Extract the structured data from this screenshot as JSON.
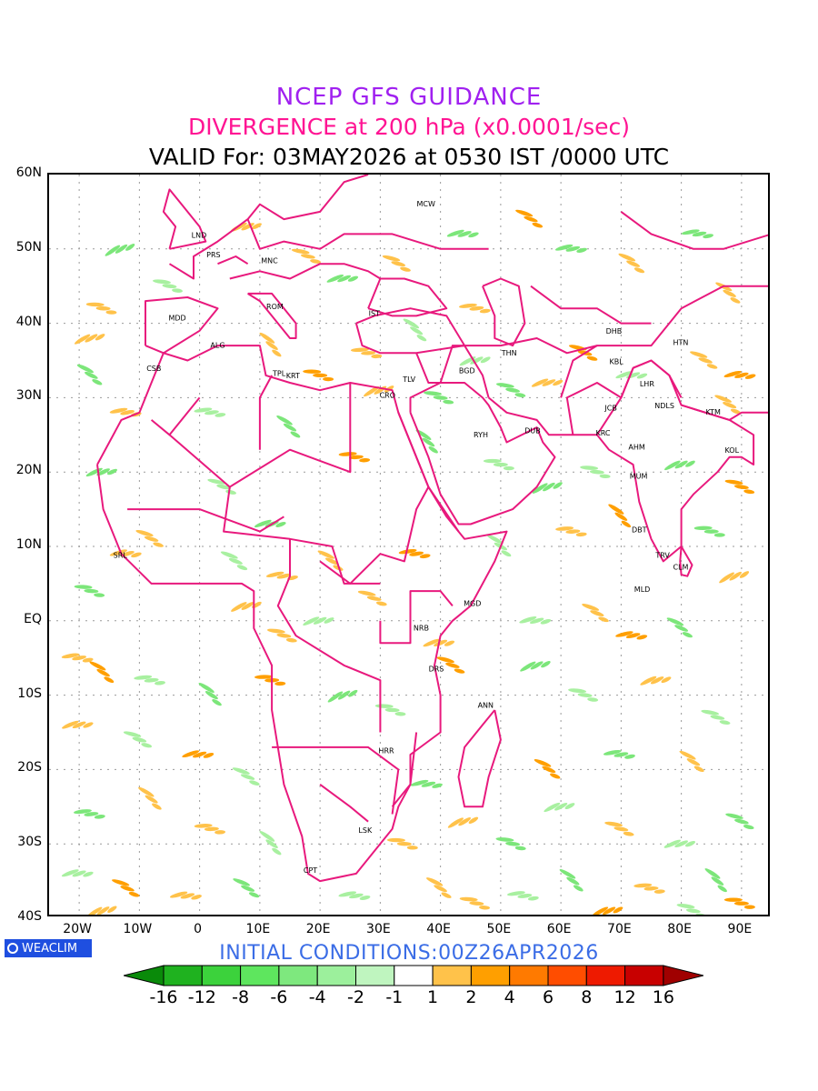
{
  "title_lines": {
    "model": "NCEP GFS GUIDANCE",
    "field": "DIVERGENCE at 200 hPa (x0.0001/sec)",
    "valid": "VALID For: 03MAY2026 at 0530 IST /0000 UTC"
  },
  "initial_conditions": "INITIAL CONDITIONS:00Z26APR2026",
  "logo_text": "WEACLIM",
  "lat_labels": [
    "60N",
    "50N",
    "40N",
    "30N",
    "20N",
    "10N",
    "EQ",
    "10S",
    "20S",
    "30S",
    "40S"
  ],
  "lon_labels": [
    "20W",
    "10W",
    "0",
    "10E",
    "20E",
    "30E",
    "40E",
    "50E",
    "60E",
    "70E",
    "80E",
    "90E"
  ],
  "colors": {
    "boundary": "#e8197d",
    "neg_light": "#a8f0a0",
    "neg_mid": "#7ce67a",
    "pos_light": "#ffc24a",
    "pos_mid": "#ff9f00",
    "pos_dark": "#ff6a00"
  },
  "colorbar": {
    "labels": [
      "-16",
      "-12",
      "-8",
      "-6",
      "-4",
      "-2",
      "-1",
      "1",
      "2",
      "4",
      "6",
      "8",
      "12",
      "16"
    ],
    "colors": [
      "#0a8a0a",
      "#1fb21f",
      "#3cd23c",
      "#5ee65e",
      "#7ee87e",
      "#9cf09c",
      "#bff5bf",
      "#ffffff",
      "#ffc24a",
      "#ff9f00",
      "#ff7a00",
      "#ff4d00",
      "#ee1a00",
      "#c80000",
      "#a00000"
    ]
  },
  "stations": [
    {
      "code": "MCW",
      "lon": 37.6,
      "lat": 55.7
    },
    {
      "code": "LND",
      "lon": -0.1,
      "lat": 51.5
    },
    {
      "code": "PRS",
      "lon": 2.3,
      "lat": 48.9
    },
    {
      "code": "MNC",
      "lon": 11.6,
      "lat": 48.1
    },
    {
      "code": "ROM",
      "lon": 12.5,
      "lat": 41.9
    },
    {
      "code": "IST",
      "lon": 29.0,
      "lat": 41.0
    },
    {
      "code": "MDD",
      "lon": -3.7,
      "lat": 40.4
    },
    {
      "code": "ALG",
      "lon": 3.0,
      "lat": 36.7
    },
    {
      "code": "CSB",
      "lon": -7.6,
      "lat": 33.6
    },
    {
      "code": "TPL",
      "lon": 13.2,
      "lat": 32.9
    },
    {
      "code": "KRT",
      "lon": 15.5,
      "lat": 32.6
    },
    {
      "code": "TLV",
      "lon": 34.8,
      "lat": 32.1
    },
    {
      "code": "CRO",
      "lon": 31.2,
      "lat": 30.0
    },
    {
      "code": "BGD",
      "lon": 44.4,
      "lat": 33.3
    },
    {
      "code": "THN",
      "lon": 51.4,
      "lat": 35.7
    },
    {
      "code": "DHB",
      "lon": 68.8,
      "lat": 38.6
    },
    {
      "code": "HTN",
      "lon": 79.9,
      "lat": 37.1
    },
    {
      "code": "KBL",
      "lon": 69.2,
      "lat": 34.5
    },
    {
      "code": "LHR",
      "lon": 74.3,
      "lat": 31.5
    },
    {
      "code": "JCB",
      "lon": 68.3,
      "lat": 28.3
    },
    {
      "code": "NDLS",
      "lon": 77.2,
      "lat": 28.6
    },
    {
      "code": "KTM",
      "lon": 85.3,
      "lat": 27.7
    },
    {
      "code": "RYH",
      "lon": 46.7,
      "lat": 24.7
    },
    {
      "code": "DUB",
      "lon": 55.3,
      "lat": 25.2
    },
    {
      "code": "KRC",
      "lon": 67.0,
      "lat": 24.9
    },
    {
      "code": "AHM",
      "lon": 72.6,
      "lat": 23.0
    },
    {
      "code": "KOL",
      "lon": 88.4,
      "lat": 22.6
    },
    {
      "code": "MUM",
      "lon": 72.9,
      "lat": 19.1
    },
    {
      "code": "DBT",
      "lon": 73.0,
      "lat": 11.9
    },
    {
      "code": "TRV",
      "lon": 76.9,
      "lat": 8.5
    },
    {
      "code": "CLM",
      "lon": 79.9,
      "lat": 6.9
    },
    {
      "code": "MLD",
      "lon": 73.5,
      "lat": 3.9
    },
    {
      "code": "SRL",
      "lon": -13.2,
      "lat": 8.5
    },
    {
      "code": "MGD",
      "lon": 45.3,
      "lat": 2.0
    },
    {
      "code": "NRB",
      "lon": 36.8,
      "lat": -1.3
    },
    {
      "code": "DRS",
      "lon": 39.3,
      "lat": -6.8
    },
    {
      "code": "ANN",
      "lon": 47.5,
      "lat": -11.7
    },
    {
      "code": "HRR",
      "lon": 31.0,
      "lat": -17.8
    },
    {
      "code": "LSK",
      "lon": 27.5,
      "lat": -28.5
    },
    {
      "code": "CPT",
      "lon": 18.4,
      "lat": -33.9
    }
  ],
  "divergence_blobs": [
    {
      "lon": -13,
      "lat": 50,
      "cls": "neg"
    },
    {
      "lon": -16,
      "lat": 42,
      "cls": "pos"
    },
    {
      "lon": -18,
      "lat": 38,
      "cls": "pos"
    },
    {
      "lon": -5,
      "lat": 45,
      "cls": "neg"
    },
    {
      "lon": 8,
      "lat": 53,
      "cls": "pos"
    },
    {
      "lon": 18,
      "lat": 49,
      "cls": "pos"
    },
    {
      "lon": 24,
      "lat": 46,
      "cls": "neg"
    },
    {
      "lon": 33,
      "lat": 48,
      "cls": "pos"
    },
    {
      "lon": 44,
      "lat": 52,
      "cls": "neg"
    },
    {
      "lon": 55,
      "lat": 54,
      "cls": "pos"
    },
    {
      "lon": 62,
      "lat": 50,
      "cls": "neg"
    },
    {
      "lon": 72,
      "lat": 48,
      "cls": "pos"
    },
    {
      "lon": 83,
      "lat": 52,
      "cls": "neg"
    },
    {
      "lon": 88,
      "lat": 44,
      "cls": "pos"
    },
    {
      "lon": 46,
      "lat": 42,
      "cls": "pos"
    },
    {
      "lon": 36,
      "lat": 39,
      "cls": "neg"
    },
    {
      "lon": 28,
      "lat": 36,
      "cls": "pos"
    },
    {
      "lon": 12,
      "lat": 37,
      "cls": "pos"
    },
    {
      "lon": 20,
      "lat": 33,
      "cls": "pos"
    },
    {
      "lon": 30,
      "lat": 31,
      "cls": "pos"
    },
    {
      "lon": 40,
      "lat": 30,
      "cls": "neg"
    },
    {
      "lon": 46,
      "lat": 35,
      "cls": "neg"
    },
    {
      "lon": 52,
      "lat": 31,
      "cls": "neg"
    },
    {
      "lon": 58,
      "lat": 32,
      "cls": "pos"
    },
    {
      "lon": 64,
      "lat": 36,
      "cls": "pos"
    },
    {
      "lon": 72,
      "lat": 33,
      "cls": "neg"
    },
    {
      "lon": 84,
      "lat": 35,
      "cls": "pos"
    },
    {
      "lon": 90,
      "lat": 33,
      "cls": "pos"
    },
    {
      "lon": 88,
      "lat": 29,
      "cls": "pos"
    },
    {
      "lon": -12,
      "lat": 28,
      "cls": "pos"
    },
    {
      "lon": -18,
      "lat": 33,
      "cls": "neg"
    },
    {
      "lon": 2,
      "lat": 28,
      "cls": "neg"
    },
    {
      "lon": 15,
      "lat": 26,
      "cls": "neg"
    },
    {
      "lon": 26,
      "lat": 22,
      "cls": "pos"
    },
    {
      "lon": 38,
      "lat": 24,
      "cls": "neg"
    },
    {
      "lon": 50,
      "lat": 21,
      "cls": "neg"
    },
    {
      "lon": 58,
      "lat": 18,
      "cls": "neg"
    },
    {
      "lon": 66,
      "lat": 20,
      "cls": "neg"
    },
    {
      "lon": 80,
      "lat": 21,
      "cls": "neg"
    },
    {
      "lon": 90,
      "lat": 18,
      "cls": "pos"
    },
    {
      "lon": -16,
      "lat": 20,
      "cls": "neg"
    },
    {
      "lon": 4,
      "lat": 18,
      "cls": "neg"
    },
    {
      "lon": 12,
      "lat": 13,
      "cls": "neg"
    },
    {
      "lon": -8,
      "lat": 11,
      "cls": "pos"
    },
    {
      "lon": -12,
      "lat": 9,
      "cls": "pos"
    },
    {
      "lon": 6,
      "lat": 8,
      "cls": "neg"
    },
    {
      "lon": 14,
      "lat": 6,
      "cls": "pos"
    },
    {
      "lon": 22,
      "lat": 8,
      "cls": "pos"
    },
    {
      "lon": 36,
      "lat": 9,
      "cls": "pos"
    },
    {
      "lon": 50,
      "lat": 10,
      "cls": "neg"
    },
    {
      "lon": 62,
      "lat": 12,
      "cls": "pos"
    },
    {
      "lon": 70,
      "lat": 14,
      "cls": "pos"
    },
    {
      "lon": 85,
      "lat": 12,
      "cls": "neg"
    },
    {
      "lon": 89,
      "lat": 6,
      "cls": "pos"
    },
    {
      "lon": -18,
      "lat": 4,
      "cls": "neg"
    },
    {
      "lon": 8,
      "lat": 2,
      "cls": "pos"
    },
    {
      "lon": 14,
      "lat": -2,
      "cls": "pos"
    },
    {
      "lon": 20,
      "lat": 0,
      "cls": "neg"
    },
    {
      "lon": 29,
      "lat": 3,
      "cls": "pos"
    },
    {
      "lon": 40,
      "lat": -3,
      "cls": "pos"
    },
    {
      "lon": 42,
      "lat": -6,
      "cls": "pos"
    },
    {
      "lon": 56,
      "lat": 0,
      "cls": "neg"
    },
    {
      "lon": 66,
      "lat": 1,
      "cls": "pos"
    },
    {
      "lon": 72,
      "lat": -2,
      "cls": "pos"
    },
    {
      "lon": 80,
      "lat": -1,
      "cls": "neg"
    },
    {
      "lon": -20,
      "lat": -5,
      "cls": "pos"
    },
    {
      "lon": -16,
      "lat": -7,
      "cls": "pos"
    },
    {
      "lon": -8,
      "lat": -8,
      "cls": "neg"
    },
    {
      "lon": 2,
      "lat": -10,
      "cls": "neg"
    },
    {
      "lon": 12,
      "lat": -8,
      "cls": "pos"
    },
    {
      "lon": 24,
      "lat": -10,
      "cls": "neg"
    },
    {
      "lon": 32,
      "lat": -12,
      "cls": "neg"
    },
    {
      "lon": 56,
      "lat": -6,
      "cls": "neg"
    },
    {
      "lon": 64,
      "lat": -10,
      "cls": "neg"
    },
    {
      "lon": 76,
      "lat": -8,
      "cls": "pos"
    },
    {
      "lon": 86,
      "lat": -13,
      "cls": "neg"
    },
    {
      "lon": -20,
      "lat": -14,
      "cls": "pos"
    },
    {
      "lon": -10,
      "lat": -16,
      "cls": "neg"
    },
    {
      "lon": 0,
      "lat": -18,
      "cls": "pos"
    },
    {
      "lon": 8,
      "lat": -21,
      "cls": "neg"
    },
    {
      "lon": 38,
      "lat": -22,
      "cls": "neg"
    },
    {
      "lon": 58,
      "lat": -20,
      "cls": "pos"
    },
    {
      "lon": 70,
      "lat": -18,
      "cls": "neg"
    },
    {
      "lon": 82,
      "lat": -19,
      "cls": "pos"
    },
    {
      "lon": -18,
      "lat": -26,
      "cls": "neg"
    },
    {
      "lon": -8,
      "lat": -24,
      "cls": "pos"
    },
    {
      "lon": 2,
      "lat": -28,
      "cls": "pos"
    },
    {
      "lon": 12,
      "lat": -30,
      "cls": "neg"
    },
    {
      "lon": 34,
      "lat": -30,
      "cls": "pos"
    },
    {
      "lon": 44,
      "lat": -27,
      "cls": "pos"
    },
    {
      "lon": 52,
      "lat": -30,
      "cls": "neg"
    },
    {
      "lon": 60,
      "lat": -25,
      "cls": "neg"
    },
    {
      "lon": 70,
      "lat": -28,
      "cls": "pos"
    },
    {
      "lon": 80,
      "lat": -30,
      "cls": "neg"
    },
    {
      "lon": 90,
      "lat": -27,
      "cls": "neg"
    },
    {
      "lon": -20,
      "lat": -34,
      "cls": "neg"
    },
    {
      "lon": -12,
      "lat": -36,
      "cls": "pos"
    },
    {
      "lon": -2,
      "lat": -37,
      "cls": "pos"
    },
    {
      "lon": 8,
      "lat": -36,
      "cls": "neg"
    },
    {
      "lon": 26,
      "lat": -37,
      "cls": "neg"
    },
    {
      "lon": 40,
      "lat": -36,
      "cls": "pos"
    },
    {
      "lon": 54,
      "lat": -37,
      "cls": "neg"
    },
    {
      "lon": 62,
      "lat": -35,
      "cls": "neg"
    },
    {
      "lon": 75,
      "lat": -36,
      "cls": "pos"
    },
    {
      "lon": 86,
      "lat": -35,
      "cls": "neg"
    },
    {
      "lon": 90,
      "lat": -38,
      "cls": "pos"
    },
    {
      "lon": -16,
      "lat": -39,
      "cls": "pos"
    },
    {
      "lon": 46,
      "lat": -38,
      "cls": "pos"
    },
    {
      "lon": 68,
      "lat": -39,
      "cls": "pos"
    },
    {
      "lon": 82,
      "lat": -39,
      "cls": "neg"
    }
  ]
}
